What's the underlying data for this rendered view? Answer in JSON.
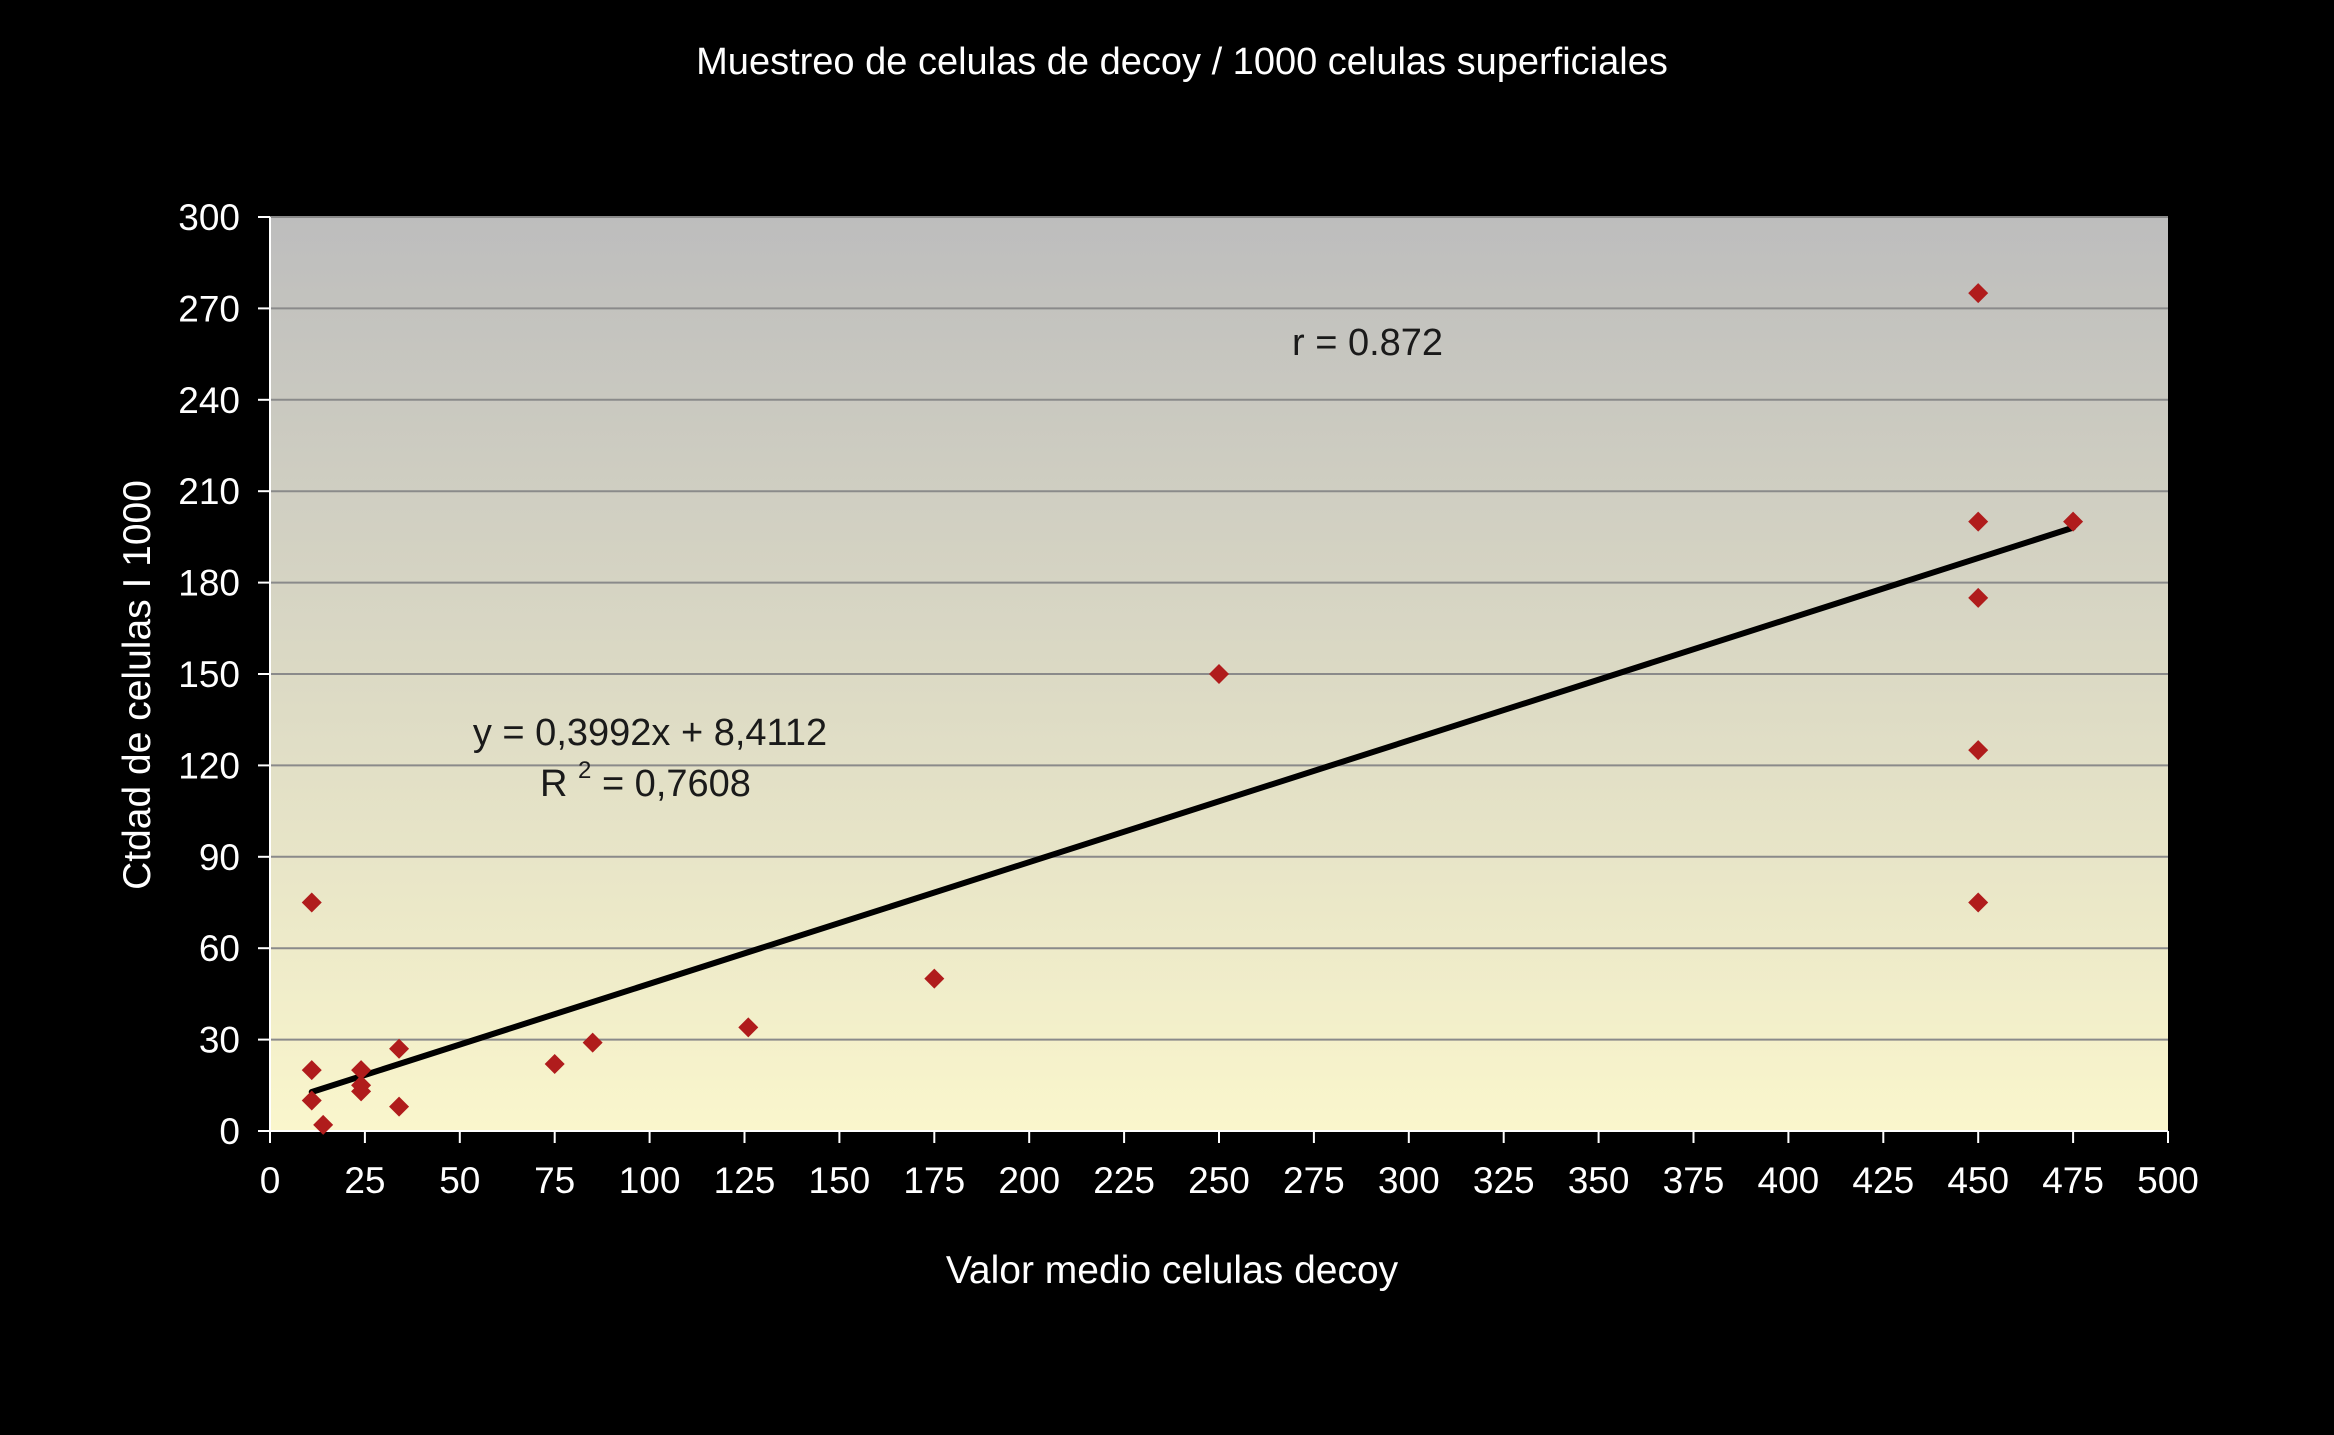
{
  "chart_data": {
    "type": "scatter",
    "title": "Muestreo de celulas de decoy / 1000 celulas superficiales",
    "xlabel": "Valor medio celulas decoy",
    "ylabel": "Ctdad de celulas I 1000",
    "xlim": [
      0,
      500
    ],
    "ylim": [
      0,
      300
    ],
    "x_ticks": [
      0,
      25,
      50,
      75,
      100,
      125,
      150,
      175,
      200,
      225,
      250,
      275,
      300,
      325,
      350,
      375,
      400,
      425,
      450,
      475,
      500
    ],
    "y_ticks": [
      0,
      30,
      60,
      90,
      120,
      150,
      180,
      210,
      240,
      270,
      300
    ],
    "grid": "horizontal",
    "legend": "none",
    "colors": {
      "background": "#000000",
      "plot_top": "#bdbdbd",
      "plot_bottom": "#faf6cc",
      "marker": "#b01c1c",
      "trendline": "#000000",
      "gridline": "#8a8a8a"
    },
    "series": [
      {
        "points": [
          {
            "x": 11,
            "y": 75
          },
          {
            "x": 11,
            "y": 20
          },
          {
            "x": 11,
            "y": 10
          },
          {
            "x": 14,
            "y": 2
          },
          {
            "x": 24,
            "y": 20
          },
          {
            "x": 24,
            "y": 15
          },
          {
            "x": 24,
            "y": 13
          },
          {
            "x": 34,
            "y": 27
          },
          {
            "x": 34,
            "y": 8
          },
          {
            "x": 75,
            "y": 22
          },
          {
            "x": 85,
            "y": 29
          },
          {
            "x": 126,
            "y": 34
          },
          {
            "x": 175,
            "y": 50
          },
          {
            "x": 250,
            "y": 150
          },
          {
            "x": 450,
            "y": 275
          },
          {
            "x": 450,
            "y": 200
          },
          {
            "x": 450,
            "y": 175
          },
          {
            "x": 450,
            "y": 125
          },
          {
            "x": 450,
            "y": 75
          },
          {
            "x": 475,
            "y": 200
          }
        ]
      }
    ],
    "trendline": {
      "slope": 0.3992,
      "intercept": 8.4112,
      "x_range": [
        11,
        475
      ]
    },
    "annotations": {
      "correlation": "r = 0.872",
      "equation": "y = 0,3992x + 8,4112",
      "r2_prefix": "R",
      "r2_sup": "2",
      "r2_value": " = 0,7608"
    }
  }
}
